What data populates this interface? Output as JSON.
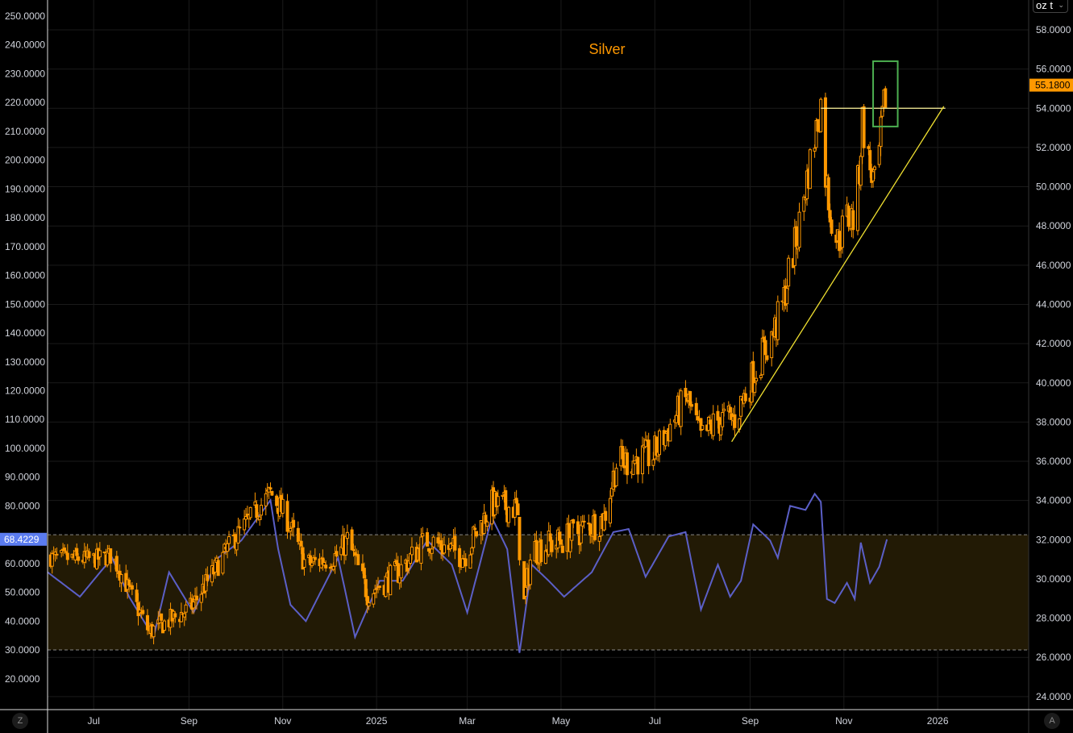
{
  "chart_data": {
    "type": "candlestick",
    "title": "Silver",
    "unit_label": "oz t",
    "last_price": "55.1800",
    "indicator_last": "68.4229",
    "x_start_date": "2024-06-01",
    "x_unit": "days since start",
    "x_ticks": [
      {
        "label": "Jul",
        "day": 30
      },
      {
        "label": "Sep",
        "day": 92
      },
      {
        "label": "Nov",
        "day": 153
      },
      {
        "label": "2025",
        "day": 214
      },
      {
        "label": "Mar",
        "day": 273
      },
      {
        "label": "May",
        "day": 334
      },
      {
        "label": "Jul",
        "day": 395
      },
      {
        "label": "Sep",
        "day": 457
      },
      {
        "label": "Nov",
        "day": 518
      },
      {
        "label": "2026",
        "day": 579
      }
    ],
    "right_axis": {
      "min": 23,
      "max": 59.5,
      "ticks": [
        "24.0000",
        "26.0000",
        "28.0000",
        "30.0000",
        "32.0000",
        "34.0000",
        "36.0000",
        "38.0000",
        "40.0000",
        "42.0000",
        "44.0000",
        "46.0000",
        "48.0000",
        "50.0000",
        "52.0000",
        "54.0000",
        "56.0000",
        "58.0000"
      ]
    },
    "left_axis": {
      "ticks": [
        "20.0000",
        "30.0000",
        "40.0000",
        "50.0000",
        "60.0000",
        "80.0000",
        "90.0000",
        "100.0000",
        "110.0000",
        "120.0000",
        "130.0000",
        "140.0000",
        "150.0000",
        "160.0000",
        "170.0000",
        "180.0000",
        "190.0000",
        "200.0000",
        "210.0000",
        "220.0000",
        "230.0000",
        "240.0000",
        "250.0000"
      ]
    },
    "price_series": [
      [
        0,
        31.1
      ],
      [
        30,
        31.0
      ],
      [
        42,
        31.2
      ],
      [
        66,
        27.3
      ],
      [
        93,
        28.5
      ],
      [
        121,
        32.0
      ],
      [
        145,
        34.4
      ],
      [
        155,
        33.2
      ],
      [
        168,
        30.7
      ],
      [
        189,
        31.2
      ],
      [
        195,
        32.0
      ],
      [
        208,
        29.3
      ],
      [
        226,
        30.2
      ],
      [
        247,
        32.0
      ],
      [
        271,
        31.2
      ],
      [
        289,
        33.8
      ],
      [
        305,
        33.6
      ],
      [
        310,
        28.7
      ],
      [
        315,
        31.5
      ],
      [
        333,
        31.9
      ],
      [
        362,
        33.1
      ],
      [
        370,
        35.9
      ],
      [
        394,
        36.3
      ],
      [
        407,
        38.1
      ],
      [
        416,
        39.2
      ],
      [
        425,
        37.1
      ],
      [
        436,
        38.1
      ],
      [
        446,
        38.1
      ],
      [
        456,
        39.8
      ],
      [
        462,
        41.0
      ],
      [
        472,
        42.5
      ],
      [
        478,
        43.9
      ],
      [
        483,
        46.0
      ],
      [
        488,
        47.6
      ],
      [
        493,
        50.0
      ],
      [
        499,
        52.5
      ],
      [
        503,
        54.2
      ],
      [
        505,
        51.3
      ],
      [
        509,
        48.8
      ],
      [
        514,
        47.2
      ],
      [
        520,
        48.4
      ],
      [
        525,
        48.4
      ],
      [
        528,
        50.9
      ],
      [
        530,
        53.4
      ],
      [
        534,
        51.3
      ],
      [
        538,
        50.0
      ],
      [
        541,
        51.7
      ],
      [
        543,
        53.4
      ],
      [
        546,
        55.18
      ]
    ],
    "indicator_series": [
      [
        0,
        57
      ],
      [
        21,
        48.5
      ],
      [
        42,
        62
      ],
      [
        53,
        48.5
      ],
      [
        69,
        34.5
      ],
      [
        79,
        57
      ],
      [
        95,
        43
      ],
      [
        111,
        62
      ],
      [
        126,
        68
      ],
      [
        145,
        82
      ],
      [
        150,
        65
      ],
      [
        158,
        45.7
      ],
      [
        168,
        40
      ],
      [
        189,
        62
      ],
      [
        200,
        34.5
      ],
      [
        216,
        54
      ],
      [
        231,
        54
      ],
      [
        247,
        68
      ],
      [
        263,
        59.6
      ],
      [
        273,
        43
      ],
      [
        289,
        76
      ],
      [
        299,
        65
      ],
      [
        307,
        29
      ],
      [
        315,
        59.6
      ],
      [
        326,
        54
      ],
      [
        336,
        48.5
      ],
      [
        354,
        57
      ],
      [
        368,
        70.9
      ],
      [
        378,
        72
      ],
      [
        389,
        55.4
      ],
      [
        404,
        69.4
      ],
      [
        415,
        70.9
      ],
      [
        425,
        44
      ],
      [
        436,
        59.6
      ],
      [
        444,
        48.5
      ],
      [
        451,
        54
      ],
      [
        459,
        73.6
      ],
      [
        470,
        68
      ],
      [
        475,
        62
      ],
      [
        483,
        80
      ],
      [
        493,
        78.6
      ],
      [
        499,
        84.2
      ],
      [
        503,
        81.4
      ],
      [
        507,
        47.7
      ],
      [
        512,
        46.3
      ],
      [
        520,
        53.3
      ],
      [
        525,
        47.7
      ],
      [
        529,
        67.3
      ],
      [
        535,
        53.3
      ],
      [
        541,
        58.9
      ],
      [
        546,
        68.4
      ]
    ],
    "indicator_band": [
      30,
      70
    ],
    "annotations": {
      "resistance": {
        "price": 54.0,
        "from_day": 503,
        "to_day": 584
      },
      "trendline": {
        "from": [
          445,
          37.0
        ],
        "to": [
          583,
          54.1
        ]
      },
      "highlight_box": {
        "from_day": 537,
        "to_day": 553,
        "low": 53.07,
        "high": 56.4
      }
    },
    "colors": {
      "candle": "#ff9800",
      "indicator": "#5b5fc7",
      "band": "#221a05",
      "trendline": "#f0e030",
      "resistance": "#fff59d",
      "box": "#4caf50",
      "badge_indicator": "#5b7cf0"
    }
  },
  "buttons": {
    "zoom": "Z",
    "auto": "A"
  }
}
